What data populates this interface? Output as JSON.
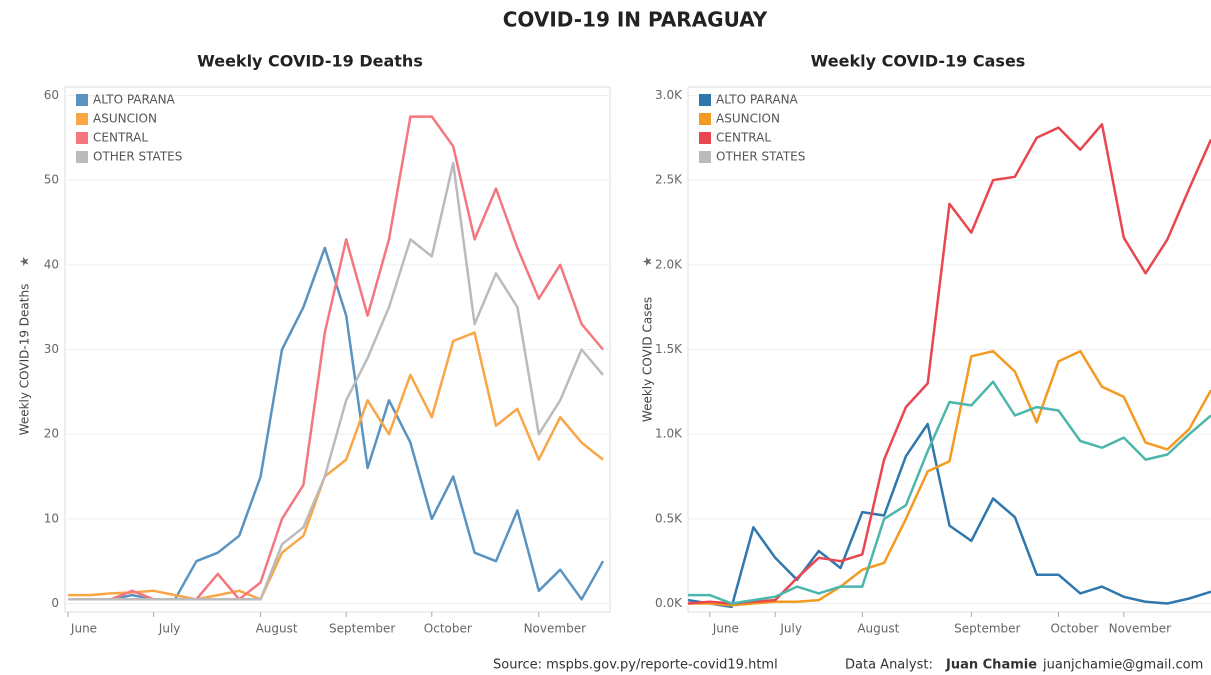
{
  "title": "COVID-19 IN PARAGUAY",
  "footer": {
    "source": "Source:  mspbs.gov.py/reporte-covid19.html",
    "analyst_label": "Data Analyst:",
    "analyst": "Juan Chamie",
    "email": "juanjchamie@gmail.com"
  },
  "chart_data": [
    {
      "type": "line",
      "title": "Weekly COVID-19 Deaths",
      "y_label": "Weekly COVID-19 Deaths",
      "categories": [
        "June",
        null,
        null,
        null,
        "July",
        null,
        null,
        null,
        null,
        "August",
        null,
        null,
        null,
        "September",
        null,
        null,
        null,
        "October",
        null,
        null,
        null,
        null,
        "November",
        null,
        null,
        null
      ],
      "ylim": [
        -1,
        61
      ],
      "yticks": [
        0,
        10,
        20,
        30,
        40,
        50,
        60
      ],
      "grid": true,
      "legend": "top-left",
      "series": [
        {
          "name": "ALTO PARANA",
          "color": "#5b93c0",
          "values": [
            0.5,
            0.5,
            0.5,
            1,
            0.5,
            0.5,
            5,
            6,
            8,
            15,
            30,
            35,
            42,
            34,
            16,
            24,
            19,
            10,
            15,
            6,
            5,
            11,
            1.5,
            4,
            0.5,
            5
          ]
        },
        {
          "name": "ASUNCION",
          "color": "#f9a646",
          "values": [
            1,
            1,
            1.2,
            1.3,
            1.5,
            1,
            0.5,
            1,
            1.5,
            0.5,
            6,
            8,
            15,
            17,
            24,
            20,
            27,
            22,
            31,
            32,
            21,
            23,
            17,
            22,
            19,
            17
          ]
        },
        {
          "name": "CENTRAL",
          "color": "#f4777f",
          "values": [
            0.5,
            0.5,
            0.5,
            1.5,
            0.5,
            0.5,
            0.5,
            3.5,
            0.5,
            2.5,
            10,
            14,
            32,
            43,
            34,
            43,
            57.5,
            57.5,
            54,
            43,
            49,
            42,
            36,
            40,
            33,
            30
          ]
        },
        {
          "name": "OTHER STATES",
          "color": "#bbbbbb",
          "values": [
            0.5,
            0.5,
            0.5,
            0.5,
            0.5,
            0.5,
            0.5,
            0.5,
            0.5,
            0.5,
            7,
            9,
            15,
            24,
            29,
            35,
            43,
            41,
            52,
            33,
            39,
            35,
            20,
            24,
            30,
            27
          ]
        }
      ]
    },
    {
      "type": "line",
      "title": "Weekly COVID-19 Cases",
      "y_label": "Weekly COVID Cases",
      "categories": [
        null,
        "June",
        null,
        null,
        "July",
        null,
        null,
        null,
        "August",
        null,
        null,
        null,
        null,
        "September",
        null,
        null,
        null,
        "October",
        null,
        null,
        "November",
        null,
        null,
        null,
        null
      ],
      "ylim": [
        -50,
        3050
      ],
      "yticks": [
        {
          "value": 0,
          "label": "0.0K"
        },
        {
          "value": 500,
          "label": "0.5K"
        },
        {
          "value": 1000,
          "label": "1.0K"
        },
        {
          "value": 1500,
          "label": "1.5K"
        },
        {
          "value": 2000,
          "label": "2.0K"
        },
        {
          "value": 2500,
          "label": "2.5K"
        },
        {
          "value": 3000,
          "label": "3.0K"
        }
      ],
      "grid": true,
      "legend": "top-left",
      "series": [
        {
          "name": "ALTO PARANA",
          "color": "#2f77ad",
          "values": [
            20,
            0,
            -20,
            450,
            270,
            140,
            310,
            210,
            540,
            520,
            870,
            1060,
            460,
            370,
            620,
            510,
            170,
            170,
            60,
            100,
            40,
            10,
            0,
            30,
            70
          ]
        },
        {
          "name": "ASUNCION",
          "color": "#f39a22",
          "values": [
            0,
            0,
            -10,
            0,
            10,
            10,
            20,
            100,
            200,
            240,
            500,
            780,
            840,
            1460,
            1490,
            1370,
            1070,
            1430,
            1490,
            1280,
            1220,
            950,
            910,
            1030,
            1260
          ]
        },
        {
          "name": "CENTRAL",
          "color": "#e8474f",
          "values": [
            0,
            10,
            0,
            10,
            20,
            150,
            270,
            250,
            290,
            850,
            1160,
            1300,
            2360,
            2190,
            2500,
            2520,
            2750,
            2810,
            2680,
            2830,
            2160,
            1950,
            2150,
            2450,
            2740
          ]
        },
        {
          "name": "OTHER STATES",
          "color": "#4db6ac",
          "legend_color": "#bbbbbb",
          "values": [
            50,
            50,
            0,
            20,
            40,
            100,
            60,
            100,
            100,
            500,
            580,
            900,
            1190,
            1170,
            1310,
            1110,
            1160,
            1140,
            960,
            920,
            980,
            850,
            880,
            1000,
            1110
          ]
        }
      ]
    }
  ]
}
